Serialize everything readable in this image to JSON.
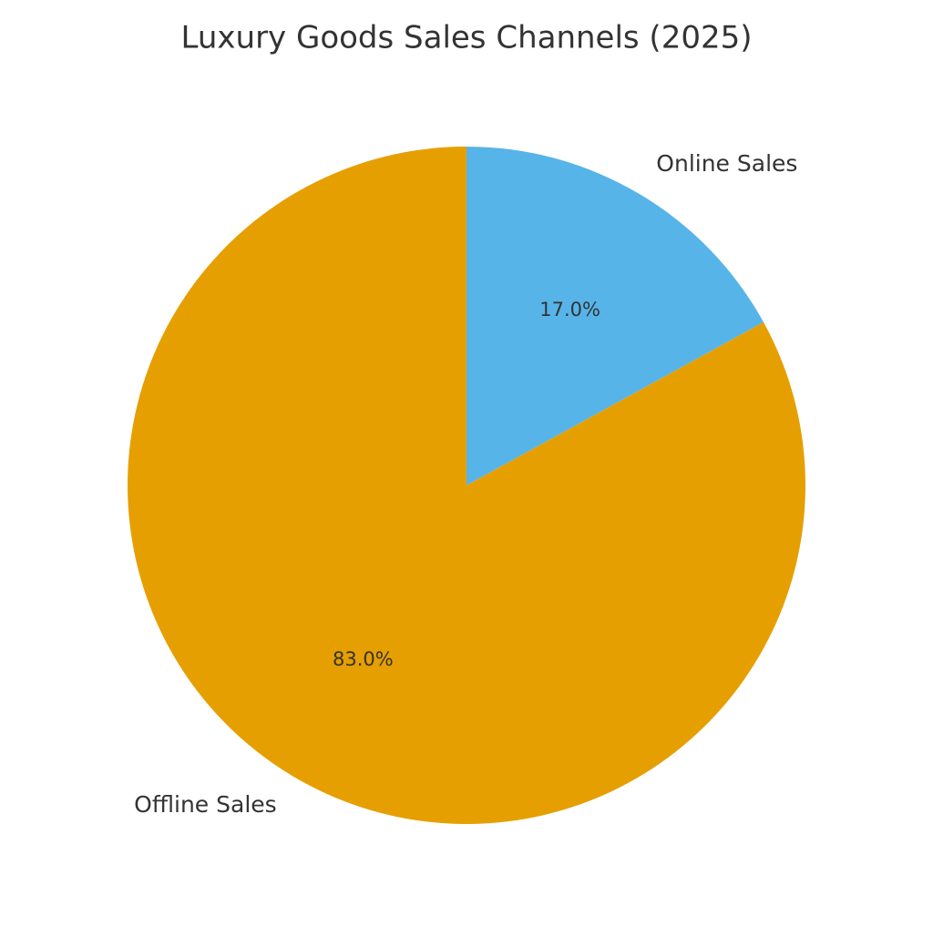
{
  "chart_data": {
    "type": "pie",
    "title": "Luxury Goods Sales Channels (2025)",
    "categories": [
      "Offline Sales",
      "Online Sales"
    ],
    "values": [
      83,
      17
    ],
    "value_labels": [
      "83.0%",
      "17.0%"
    ],
    "colors": [
      "#e69f00",
      "#56b4e9"
    ]
  }
}
